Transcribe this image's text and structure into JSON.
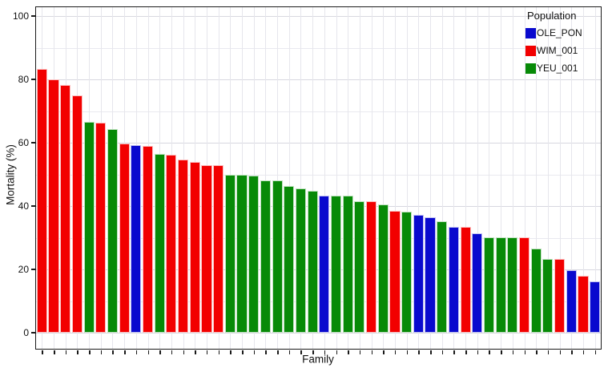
{
  "chart_data": {
    "type": "bar",
    "title": "",
    "xlabel": "Family",
    "ylabel": "Mortality (%)",
    "ylim": [
      0,
      100
    ],
    "yticks": [
      0,
      20,
      40,
      60,
      80,
      100
    ],
    "yminor": [
      10,
      30,
      50,
      70,
      90
    ],
    "grid": "on",
    "legend": {
      "title": "Population",
      "position": "top-right-inside",
      "entries": [
        {
          "label": "OLE_PON",
          "color": "#0909CE"
        },
        {
          "label": "WIM_001",
          "color": "#F20000"
        },
        {
          "label": "YEU_001",
          "color": "#078A07"
        }
      ]
    },
    "bars": [
      {
        "population": "WIM_001",
        "value": 83.3
      },
      {
        "population": "WIM_001",
        "value": 80.0
      },
      {
        "population": "WIM_001",
        "value": 78.2
      },
      {
        "population": "WIM_001",
        "value": 75.0
      },
      {
        "population": "YEU_001",
        "value": 66.7
      },
      {
        "population": "WIM_001",
        "value": 66.4
      },
      {
        "population": "YEU_001",
        "value": 64.2
      },
      {
        "population": "WIM_001",
        "value": 59.8
      },
      {
        "population": "OLE_PON",
        "value": 59.2
      },
      {
        "population": "WIM_001",
        "value": 58.9
      },
      {
        "population": "YEU_001",
        "value": 56.5
      },
      {
        "population": "WIM_001",
        "value": 56.3
      },
      {
        "population": "WIM_001",
        "value": 54.7
      },
      {
        "population": "WIM_001",
        "value": 54.0
      },
      {
        "population": "WIM_001",
        "value": 53.0
      },
      {
        "population": "WIM_001",
        "value": 53.0
      },
      {
        "population": "YEU_001",
        "value": 49.8
      },
      {
        "population": "YEU_001",
        "value": 49.8
      },
      {
        "population": "YEU_001",
        "value": 49.7
      },
      {
        "population": "YEU_001",
        "value": 48.1
      },
      {
        "population": "YEU_001",
        "value": 48.0
      },
      {
        "population": "YEU_001",
        "value": 46.4
      },
      {
        "population": "YEU_001",
        "value": 45.6
      },
      {
        "population": "YEU_001",
        "value": 44.7
      },
      {
        "population": "OLE_PON",
        "value": 43.4
      },
      {
        "population": "YEU_001",
        "value": 43.4
      },
      {
        "population": "YEU_001",
        "value": 43.3
      },
      {
        "population": "YEU_001",
        "value": 41.5
      },
      {
        "population": "WIM_001",
        "value": 41.4
      },
      {
        "population": "YEU_001",
        "value": 40.4
      },
      {
        "population": "WIM_001",
        "value": 38.6
      },
      {
        "population": "YEU_001",
        "value": 38.2
      },
      {
        "population": "OLE_PON",
        "value": 37.3
      },
      {
        "population": "OLE_PON",
        "value": 36.5
      },
      {
        "population": "YEU_001",
        "value": 35.3
      },
      {
        "population": "OLE_PON",
        "value": 33.3
      },
      {
        "population": "WIM_001",
        "value": 33.3
      },
      {
        "population": "OLE_PON",
        "value": 31.4
      },
      {
        "population": "YEU_001",
        "value": 30.1
      },
      {
        "population": "YEU_001",
        "value": 30.1
      },
      {
        "population": "YEU_001",
        "value": 30.1
      },
      {
        "population": "WIM_001",
        "value": 30.1
      },
      {
        "population": "YEU_001",
        "value": 26.6
      },
      {
        "population": "YEU_001",
        "value": 23.2
      },
      {
        "population": "WIM_001",
        "value": 23.2
      },
      {
        "population": "OLE_PON",
        "value": 19.8
      },
      {
        "population": "WIM_001",
        "value": 18.1
      },
      {
        "population": "OLE_PON",
        "value": 16.3
      }
    ]
  },
  "colors": {
    "axis": "#1A1A1A",
    "grid_major": "#D8D8E0",
    "grid_minor": "#E9E9EF",
    "background": "#FFFFFF"
  }
}
